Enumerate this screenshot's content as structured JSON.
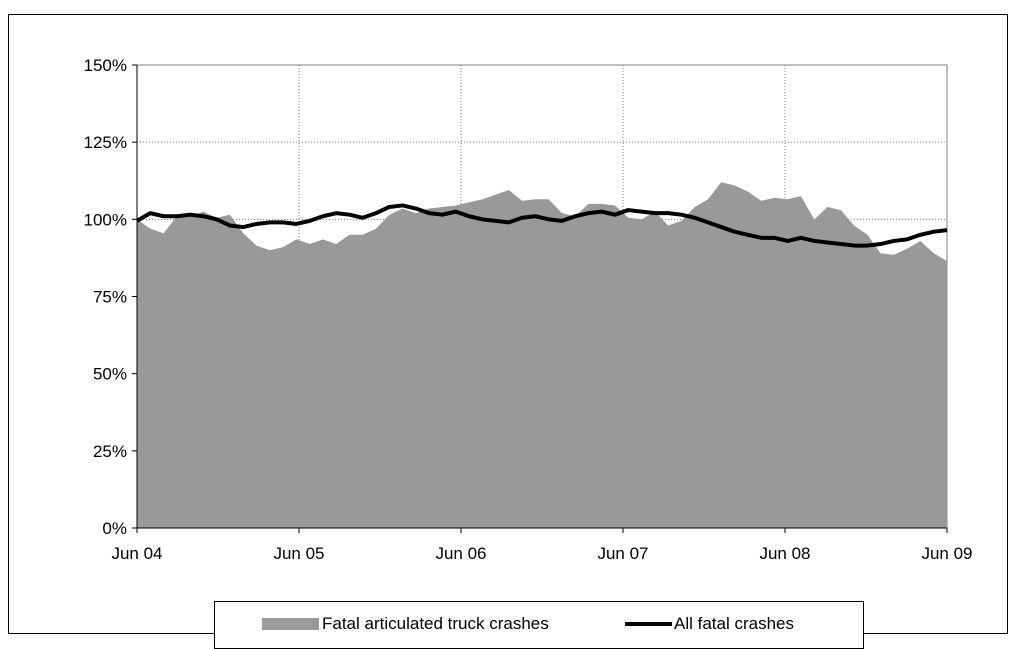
{
  "chart_data": {
    "type": "area",
    "x_labels": [
      "Jun 04",
      "Jun 05",
      "Jun 06",
      "Jun 07",
      "Jun 08",
      "Jun 09"
    ],
    "y_ticks": [
      "0%",
      "25%",
      "50%",
      "75%",
      "100%",
      "125%",
      "150%"
    ],
    "ylim": [
      0,
      150
    ],
    "grid": true,
    "legend_position": "bottom",
    "series": [
      {
        "name": "Fatal articulated truck crashes",
        "type": "area",
        "color": "#999999",
        "values": [
          100,
          97,
          95.5,
          101,
          101,
          102.5,
          100.5,
          101.5,
          95.5,
          91.5,
          90,
          91,
          93.5,
          92,
          93.5,
          92,
          95,
          95,
          97,
          101.5,
          103.5,
          102,
          103.5,
          104,
          104.5,
          105.5,
          106.5,
          108,
          109.5,
          106,
          106.5,
          106.5,
          102,
          101,
          105,
          105,
          104.5,
          100.5,
          100,
          102.5,
          98,
          99.5,
          104,
          106.5,
          112,
          111,
          109,
          106,
          107,
          106.5,
          107.5,
          100,
          104,
          103,
          98,
          95,
          89,
          88.5,
          90.5,
          93,
          89,
          86.5
        ]
      },
      {
        "name": "All fatal crashes",
        "type": "line",
        "color": "#000000",
        "values": [
          99.5,
          102,
          101,
          101,
          101.5,
          101,
          100,
          98,
          97.5,
          98.5,
          99,
          99,
          98.5,
          99.5,
          101,
          102,
          101.5,
          100.5,
          102,
          104,
          104.5,
          103.5,
          102,
          101.5,
          102.5,
          101,
          100,
          99.5,
          99,
          100.5,
          101,
          100,
          99.5,
          101,
          102,
          102.5,
          101.5,
          103,
          102.5,
          102,
          102,
          101.5,
          100.5,
          99,
          97.5,
          96,
          95,
          94,
          94,
          93,
          94,
          93,
          92.5,
          92,
          91.5,
          91.5,
          92,
          93,
          93.5,
          95,
          96,
          96.5
        ]
      }
    ]
  },
  "legend": {
    "area_label": "Fatal articulated truck crashes",
    "line_label": "All fatal crashes"
  }
}
